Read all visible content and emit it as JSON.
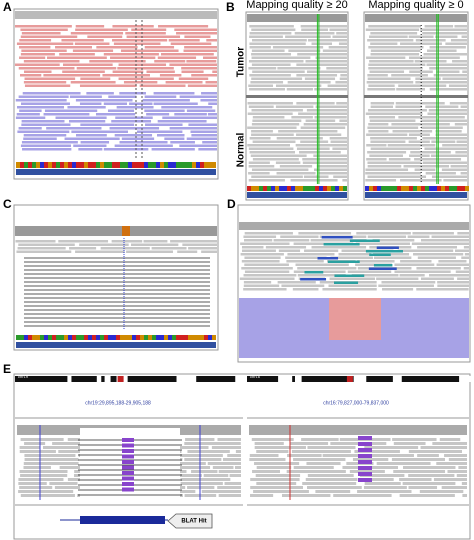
{
  "panels": {
    "a": {
      "label": "A"
    },
    "b": {
      "label": "B",
      "columns": [
        "Mapping quality ≥ 20",
        "Mapping quality ≥ 0"
      ],
      "rows": [
        "Tumor",
        "Normal"
      ]
    },
    "c": {
      "label": "C"
    },
    "d": {
      "label": "D"
    },
    "e": {
      "label": "E",
      "chromosomes": [
        "chr19",
        "chr16"
      ],
      "loci": [
        "chr19:29,895,188-29,905,188",
        "chr16:79,827,000-79,837,000"
      ],
      "callout": "BLAT Hit"
    }
  }
}
